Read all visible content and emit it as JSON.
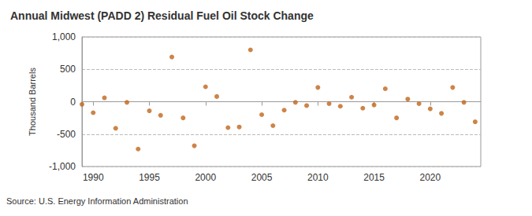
{
  "chart_data": {
    "type": "scatter",
    "title": "Annual Midwest (PADD 2) Residual Fuel Oil Stock Change",
    "y_label": "Thousand Barrels",
    "annotations": [
      "Source: U.S. Energy Information Administration"
    ],
    "x": [
      1989,
      1990,
      1991,
      1992,
      1993,
      1994,
      1995,
      1996,
      1997,
      1998,
      1999,
      2000,
      2001,
      2002,
      2003,
      2004,
      2005,
      2006,
      2007,
      2008,
      2009,
      2010,
      2011,
      2012,
      2013,
      2014,
      2015,
      2016,
      2017,
      2018,
      2019,
      2020,
      2021,
      2022,
      2023,
      2024
    ],
    "values": [
      -40,
      -170,
      60,
      -410,
      -10,
      -730,
      -140,
      -210,
      690,
      -250,
      -680,
      230,
      80,
      -400,
      -390,
      800,
      -200,
      -370,
      -130,
      -10,
      -60,
      220,
      -30,
      -70,
      70,
      -100,
      -50,
      200,
      -250,
      40,
      -30,
      -110,
      -180,
      220,
      -10,
      -310
    ],
    "color": "#c0651a",
    "marker": "circle",
    "xlim": [
      1989,
      2024.5
    ],
    "xticks": [
      1990,
      1995,
      2000,
      2005,
      2010,
      2015,
      2020
    ],
    "ylim": [
      -1000,
      1000
    ],
    "yticks": [
      {
        "value": -1000,
        "label": "-1,000"
      },
      -500,
      0,
      500,
      {
        "value": 1000,
        "label": "1,000"
      }
    ],
    "grid": true
  }
}
